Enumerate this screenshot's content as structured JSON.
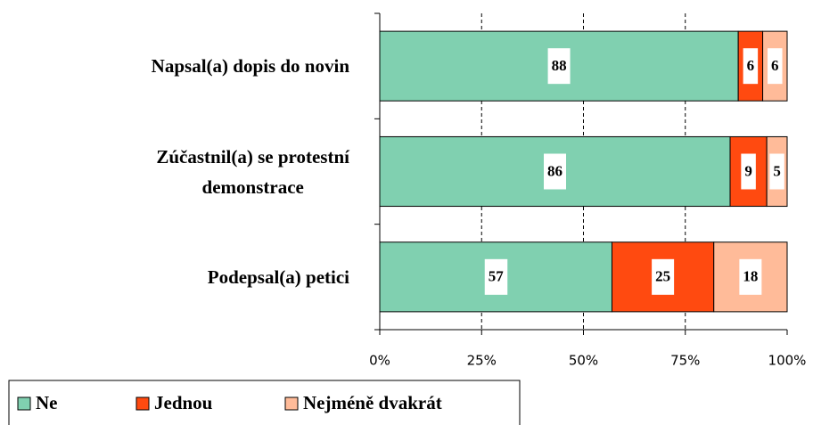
{
  "chart_data": {
    "type": "stacked-bar-horizontal",
    "categories": [
      "Napsal(a) dopis do novin",
      "Zúčastnil(a) se protestní\ndemonstrace",
      "Podepsal(a) petici"
    ],
    "series": [
      {
        "name": "Ne",
        "color": "#80d0b0",
        "values": [
          88,
          86,
          57
        ]
      },
      {
        "name": "Jednou",
        "color": "#ff4a10",
        "values": [
          6,
          9,
          25
        ]
      },
      {
        "name": "Nejméně dvakrát",
        "color": "#ffbb99",
        "values": [
          6,
          5,
          18
        ]
      }
    ],
    "xlim": [
      0,
      100
    ],
    "xticks": [
      {
        "value": 0,
        "label": "0%"
      },
      {
        "value": 25,
        "label": "25%"
      },
      {
        "value": 50,
        "label": "50%"
      },
      {
        "value": 75,
        "label": "75%"
      },
      {
        "value": 100,
        "label": "100%"
      }
    ],
    "grid": true,
    "legend": "bottom-left"
  }
}
